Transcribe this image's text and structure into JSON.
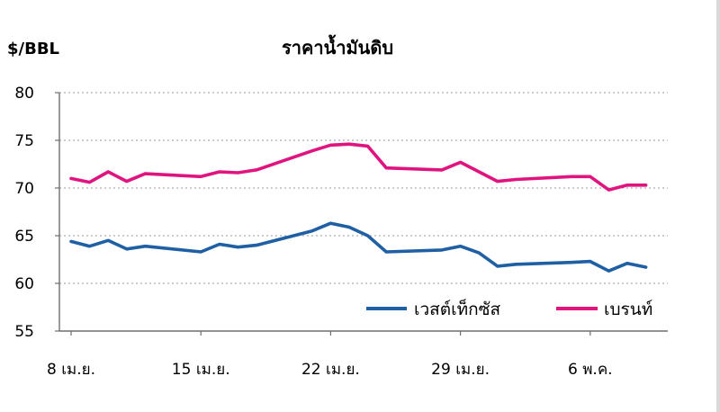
{
  "chart_data": {
    "type": "line",
    "title": "ราคาน้ำมันดิบ",
    "ylabel": "$/BBL",
    "xlabel": "",
    "ylim": [
      55,
      80
    ],
    "yticks": [
      55,
      60,
      65,
      70,
      75,
      80
    ],
    "grid": true,
    "legend_position": "bottom-right",
    "x_tick_labels": [
      {
        "label": "8 เม.ย.",
        "day": 0
      },
      {
        "label": "15 เม.ย.",
        "day": 7
      },
      {
        "label": "22 เม.ย.",
        "day": 14
      },
      {
        "label": "29 เม.ย.",
        "day": 21
      },
      {
        "label": "6 พ.ค.",
        "day": 28
      }
    ],
    "x": [
      0,
      1,
      2,
      3,
      4,
      7,
      8,
      9,
      10,
      13,
      14,
      15,
      16,
      17,
      20,
      21,
      22,
      23,
      24,
      27,
      28,
      29,
      30,
      31
    ],
    "series": [
      {
        "name": "เวสต์เท็กซัส",
        "color": "#1f5fa3",
        "values": [
          64.4,
          63.9,
          64.5,
          63.6,
          63.9,
          63.3,
          64.1,
          63.8,
          64.0,
          65.5,
          66.3,
          65.9,
          65.0,
          63.3,
          63.5,
          63.9,
          63.2,
          61.8,
          62.0,
          62.2,
          62.3,
          61.3,
          62.1,
          61.7
        ]
      },
      {
        "name": "เบรนท์",
        "color": "#e0147e",
        "values": [
          71.0,
          70.6,
          71.7,
          70.7,
          71.5,
          71.2,
          71.7,
          71.6,
          71.9,
          73.9,
          74.5,
          74.6,
          74.4,
          72.1,
          71.9,
          72.7,
          71.7,
          70.7,
          70.9,
          71.2,
          71.2,
          69.8,
          70.3,
          70.3
        ]
      }
    ]
  }
}
